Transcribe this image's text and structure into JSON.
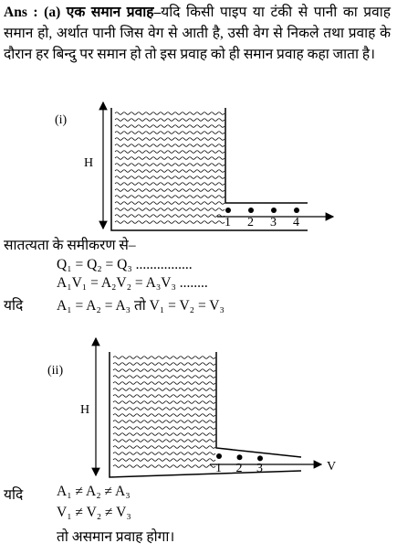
{
  "answer": {
    "lead": "Ans : (a) एक समान प्रवाह–",
    "text": "यदि किसी पाइप या टंकी से पानी का प्रवाह समान हो, अर्थात पानी जिस वेग से आती है, उसी वेग से निकले तथा प्रवाह के दौरान हर बिन्दु पर समान हो तो इस प्रवाह को ही समान प्रवाह कहा जाता है।"
  },
  "figure1": {
    "label": "(i)",
    "height_label": "H",
    "points": [
      "1",
      "2",
      "3",
      "4"
    ]
  },
  "continuity": {
    "heading": "सातत्यता के समीकरण से–",
    "equations": [
      "Q₁ = Q₂ = Q₃ ................",
      "A₁V₁ = A₂V₂ = A₃V₃ ........"
    ],
    "if": "यदि",
    "condition": "A₁ = A₂ = A₃ तो V₁ = V₂ = V₃"
  },
  "figure2": {
    "label": "(ii)",
    "height_label": "H",
    "points": [
      "1",
      "2",
      "3"
    ],
    "velocity_label": "V"
  },
  "nonuniform": {
    "if": "यदि",
    "lines": [
      "A₁ ≠ A₂ ≠ A₃",
      "V₁ ≠ V₂ ≠ V₃",
      "तो असमान प्रवाह होगा।"
    ]
  }
}
